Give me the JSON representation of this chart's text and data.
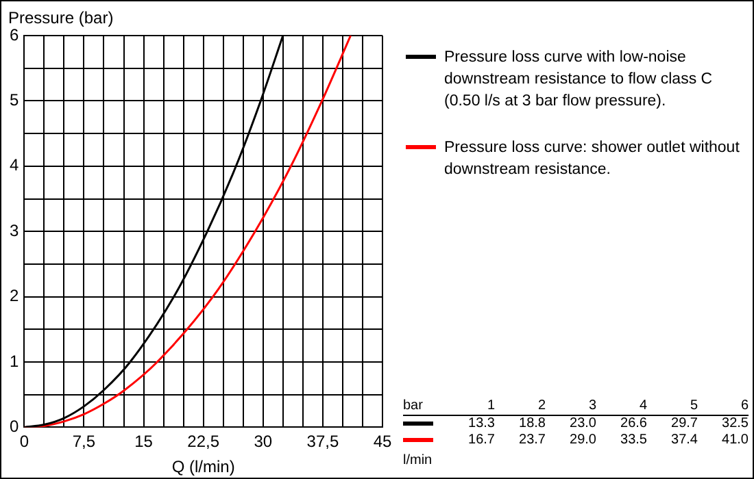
{
  "chart_data": {
    "type": "line",
    "xlabel": "Q (l/min)",
    "ylabel": "Pressure (bar)",
    "xlim": [
      0,
      45
    ],
    "ylim": [
      0,
      6
    ],
    "xticks": [
      0,
      {
        "value": 2.5,
        "label": null
      },
      {
        "value": 5,
        "label": null
      },
      {
        "value": 7.5,
        "label": "7,5"
      },
      {
        "value": 10,
        "label": null
      },
      {
        "value": 12.5,
        "label": null
      },
      15,
      {
        "value": 17.5,
        "label": null
      },
      {
        "value": 20,
        "label": null
      },
      {
        "value": 22.5,
        "label": "22,5"
      },
      {
        "value": 25,
        "label": null
      },
      {
        "value": 27.5,
        "label": null
      },
      30,
      {
        "value": 32.5,
        "label": null
      },
      {
        "value": 35,
        "label": null
      },
      {
        "value": 37.5,
        "label": "37,5"
      },
      {
        "value": 40,
        "label": null
      },
      {
        "value": 42.5,
        "label": null
      },
      45
    ],
    "yticks": [
      0,
      {
        "value": 0.5,
        "label": null
      },
      1,
      {
        "value": 1.5,
        "label": null
      },
      2,
      {
        "value": 2.5,
        "label": null
      },
      3,
      {
        "value": 3.5,
        "label": null
      },
      4,
      {
        "value": 4.5,
        "label": null
      },
      5,
      {
        "value": 5.5,
        "label": null
      },
      6
    ],
    "grid": true,
    "legend": "right",
    "marker": "none",
    "line_style": "solid",
    "series": [
      {
        "name": "Pressure loss curve with low-noise downstream resistance to flow class C (0.50 l/s at 3 bar flow pressure).",
        "color": "#000000",
        "x": [
          0,
          2.5,
          5,
          7.5,
          10,
          13.3,
          18.8,
          23.0,
          26.6,
          29.7,
          32.5
        ],
        "values": [
          0,
          0.04,
          0.14,
          0.32,
          0.57,
          1,
          2,
          3,
          4,
          5,
          6
        ]
      },
      {
        "name": "Pressure loss curve: shower outlet without downstream resistance.",
        "color": "#ff0000",
        "x": [
          0,
          2.5,
          5,
          7.5,
          10,
          12.5,
          16.7,
          23.7,
          29.0,
          33.5,
          37.4,
          41.0
        ],
        "values": [
          0,
          0.02,
          0.09,
          0.2,
          0.36,
          0.56,
          1,
          2,
          3,
          4,
          5,
          6
        ]
      }
    ],
    "annotations": [
      "bar",
      "1",
      "2",
      "3",
      "4",
      "5",
      "6",
      "13.3",
      "18.8",
      "23.0",
      "26.6",
      "29.7",
      "32.5",
      "16.7",
      "23.7",
      "29.0",
      "33.5",
      "37.4",
      "41.0",
      "l/min"
    ]
  }
}
